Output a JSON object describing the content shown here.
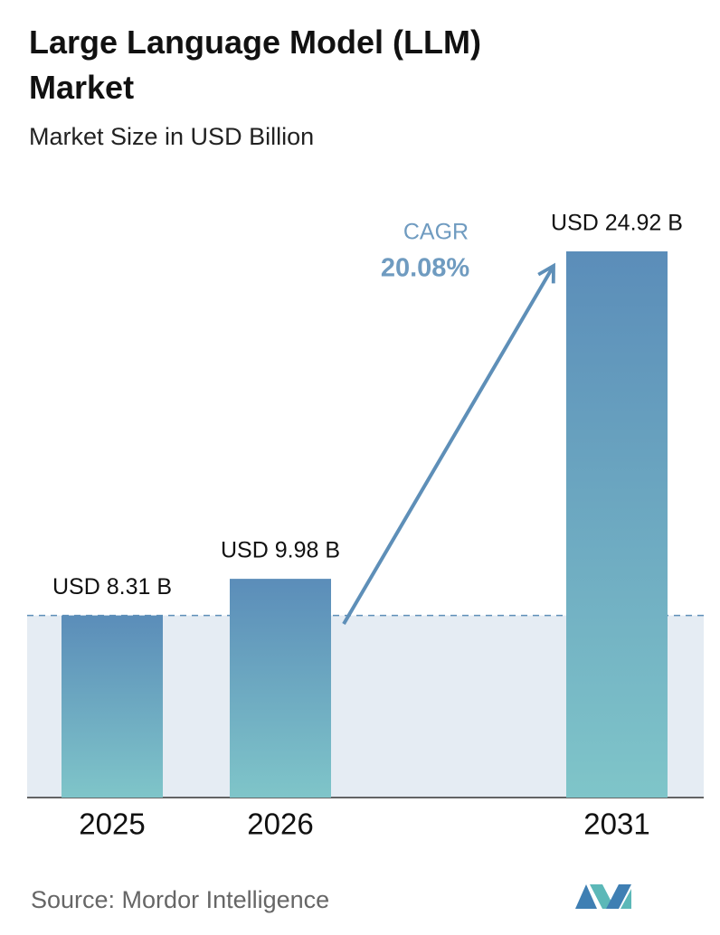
{
  "chart_data": {
    "type": "bar",
    "title": "Large Language Model (LLM) Market",
    "subtitle": "Market Size in USD Billion",
    "categories": [
      "2025",
      "2026",
      "2031"
    ],
    "values": [
      8.31,
      9.98,
      24.92
    ],
    "value_labels": [
      "USD 8.31 B",
      "USD 9.98 B",
      "USD 24.92 B"
    ],
    "color": "#5f92bb",
    "annotations": {
      "cagr_label": "CAGR",
      "cagr_value": "20.08%"
    },
    "source": "Source: Mordor Intelligence"
  }
}
